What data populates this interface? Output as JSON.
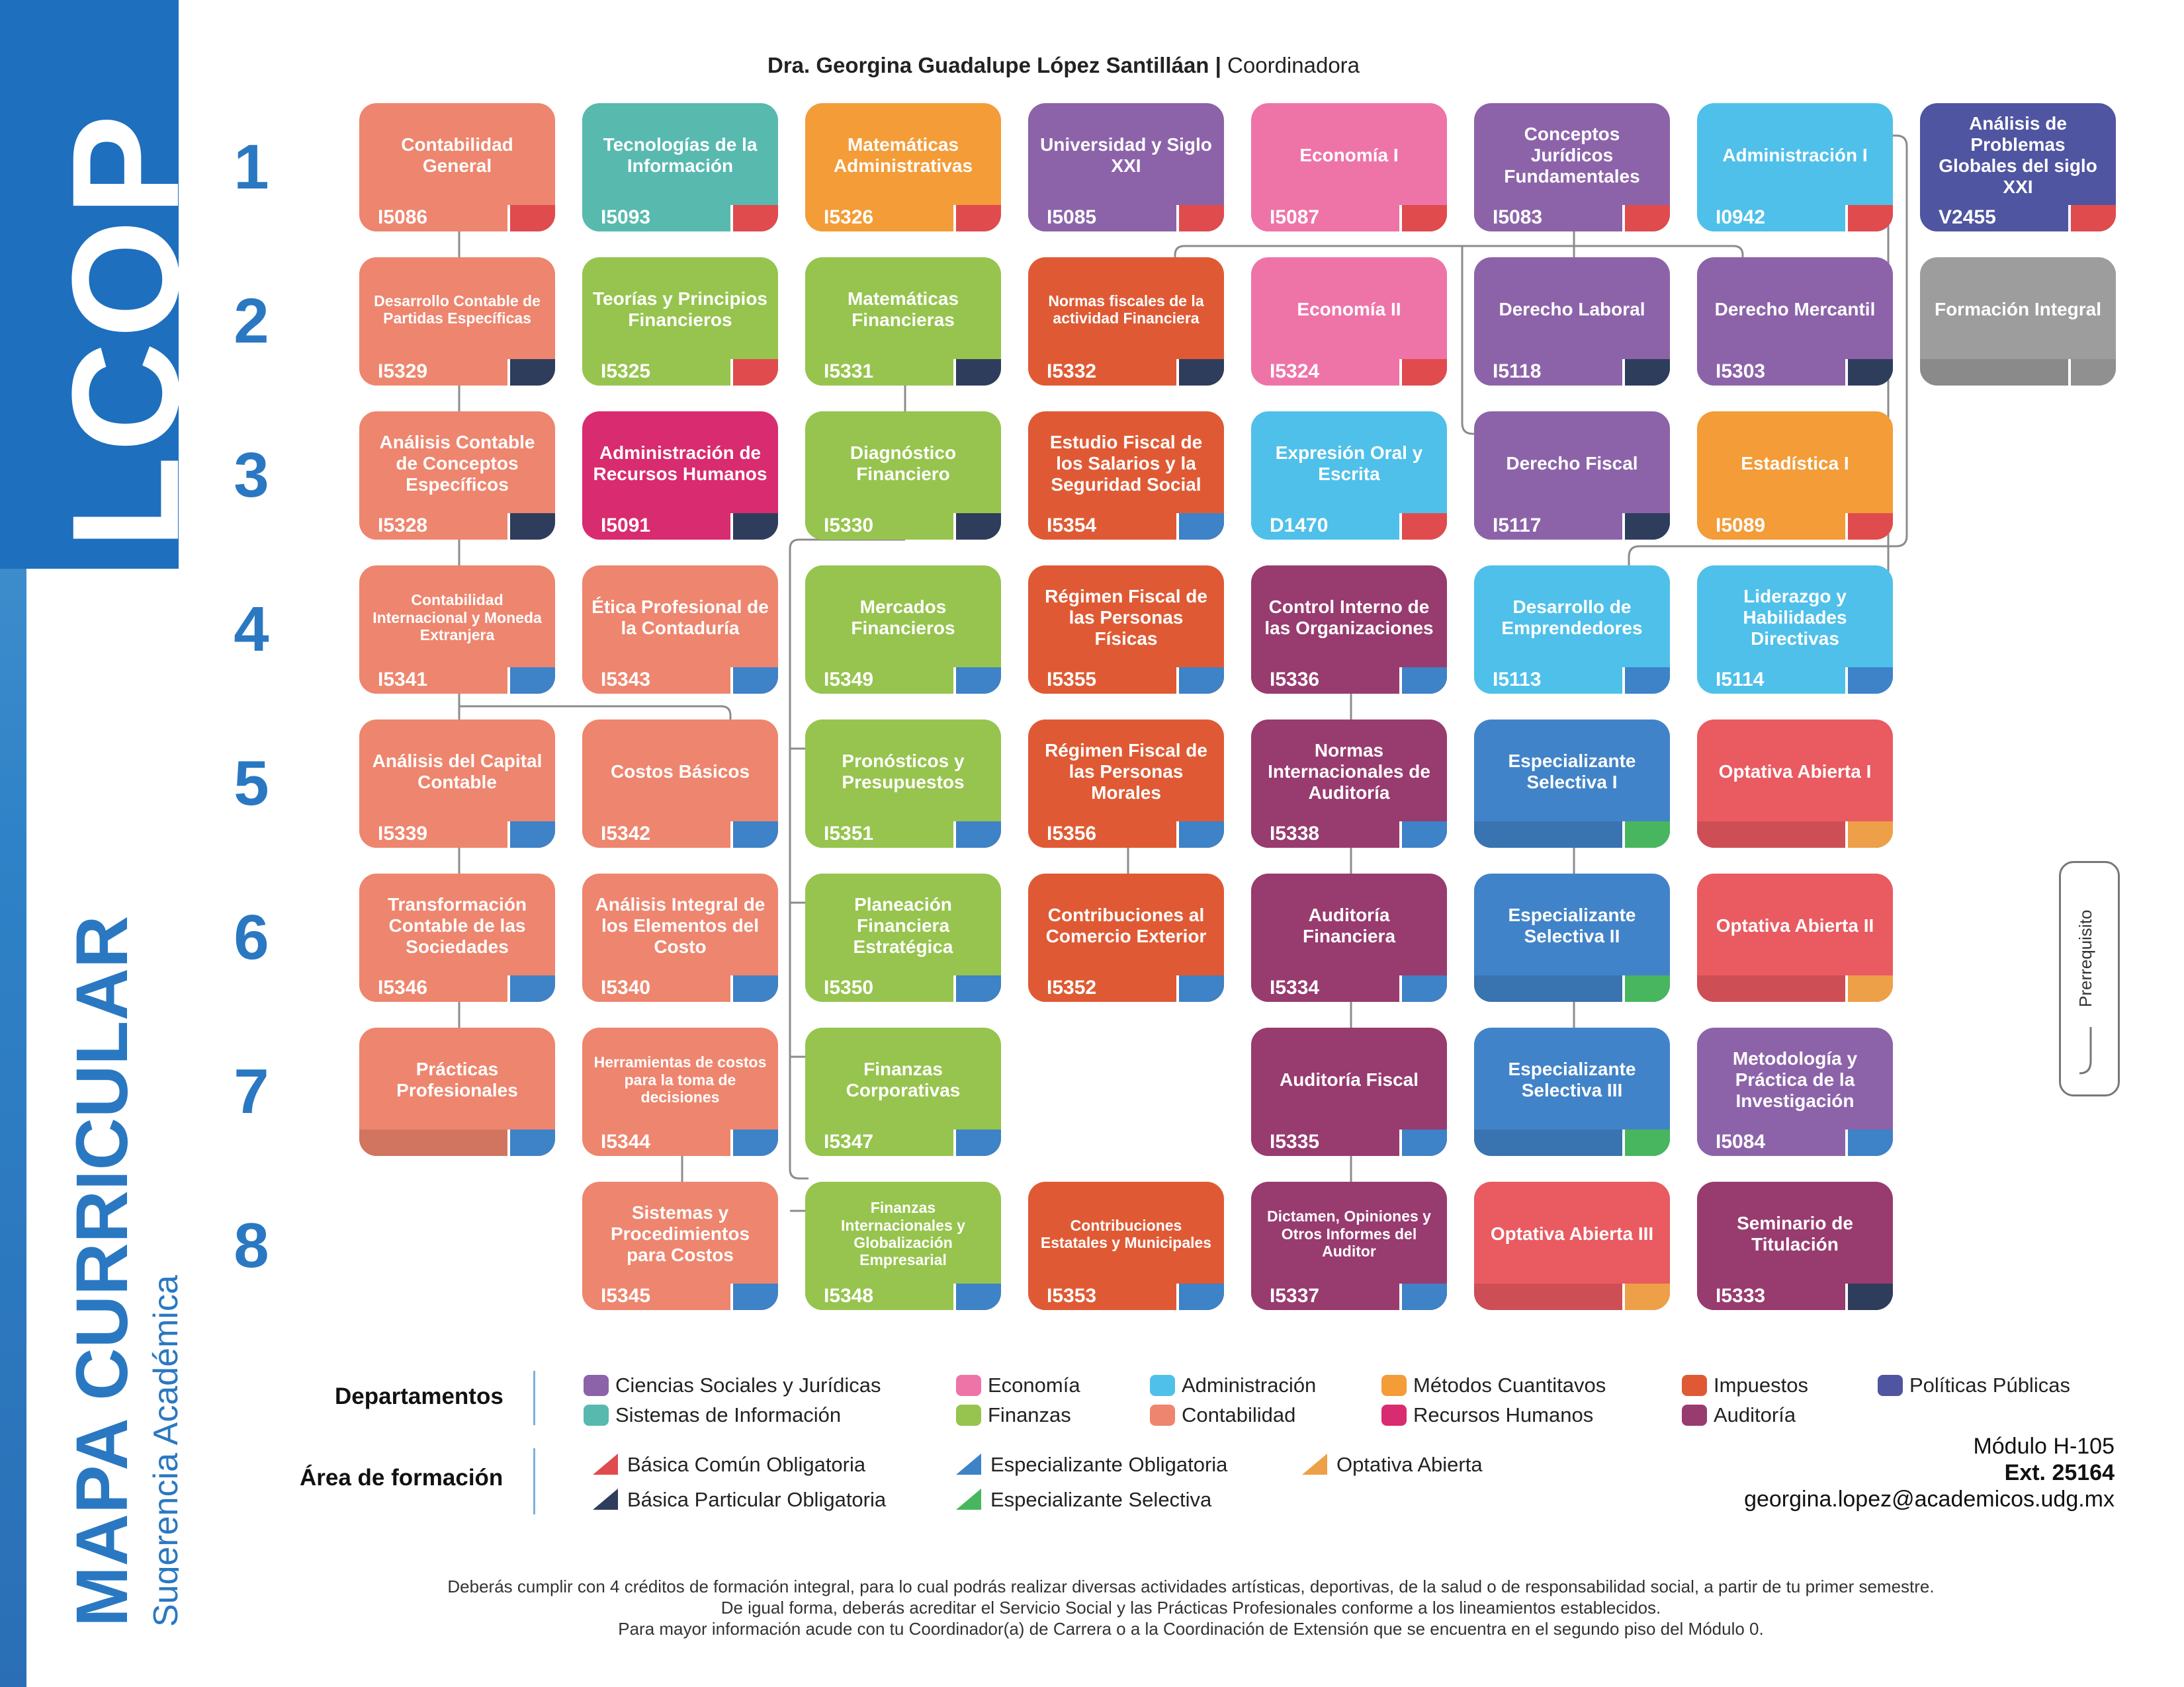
{
  "header": {
    "coordinator": "Dra. Georgina Guadalupe López Santilláan",
    "separator": " | ",
    "role": "Coordinadora"
  },
  "sidebar": {
    "program": "LCOP",
    "map_title": "MAPA CURRICULAR",
    "map_subtitle": "Sugerencia Académica"
  },
  "semesters": [
    "1",
    "2",
    "3",
    "4",
    "5",
    "6",
    "7",
    "8"
  ],
  "colors": {
    "contabilidad": "#ee856e",
    "sistemas": "#58b9af",
    "metodos": "#f39c38",
    "ciencias": "#8c63a9",
    "economia": "#ee74a8",
    "administracion": "#4fc0ea",
    "politicas": "#4f55a0",
    "finanzas": "#96c44e",
    "impuestos": "#df5a34",
    "recursos": "#d92b6f",
    "auditoria": "#983b6f",
    "especializante": "#4183c8",
    "optativa": "#e95a61",
    "gris": "#9d9d9d",
    "tag_basica_comun": "#e04b4e",
    "tag_basica_particular": "#2f3d5c",
    "tag_especializante_obl": "#3e82c7",
    "tag_especializante_sel": "#48b65e",
    "tag_optativa": "#eda048"
  },
  "courses": [
    {
      "name": "Contabilidad General",
      "code": "I5086",
      "dept": "contabilidad",
      "tag": "tag_basica_comun"
    },
    {
      "name": "Tecnologías de la Información",
      "code": "I5093",
      "dept": "sistemas",
      "tag": "tag_basica_comun"
    },
    {
      "name": "Matemáticas Administrativas",
      "code": "I5326",
      "dept": "metodos",
      "tag": "tag_basica_comun"
    },
    {
      "name": "Universidad y Siglo XXI",
      "code": "I5085",
      "dept": "ciencias",
      "tag": "tag_basica_comun"
    },
    {
      "name": "Economía I",
      "code": "I5087",
      "dept": "economia",
      "tag": "tag_basica_comun"
    },
    {
      "name": "Conceptos Jurídicos Fundamentales",
      "code": "I5083",
      "dept": "ciencias",
      "tag": "tag_basica_comun"
    },
    {
      "name": "Administración I",
      "code": "I0942",
      "dept": "administracion",
      "tag": "tag_basica_comun"
    },
    {
      "name": "Análisis de Problemas Globales del siglo XXI",
      "code": "V2455",
      "dept": "politicas",
      "tag": "tag_basica_comun"
    },
    {
      "name": "Desarrollo Contable de Partidas Específicas",
      "code": "I5329",
      "dept": "contabilidad",
      "tag": "tag_basica_particular",
      "small": true
    },
    {
      "name": "Teorías y Principios Financieros",
      "code": "I5325",
      "dept": "finanzas",
      "tag": "tag_basica_comun"
    },
    {
      "name": "Matemáticas Financieras",
      "code": "I5331",
      "dept": "finanzas",
      "tag": "tag_basica_particular"
    },
    {
      "name": "Normas fiscales de la actividad Financiera",
      "code": "I5332",
      "dept": "impuestos",
      "tag": "tag_basica_particular",
      "small": true
    },
    {
      "name": "Economía II",
      "code": "I5324",
      "dept": "economia",
      "tag": "tag_basica_comun"
    },
    {
      "name": "Derecho Laboral",
      "code": "I5118",
      "dept": "ciencias",
      "tag": "tag_basica_particular"
    },
    {
      "name": "Derecho Mercantil",
      "code": "I5303",
      "dept": "ciencias",
      "tag": "tag_basica_particular"
    },
    {
      "name": "Formación Integral",
      "code": "",
      "dept": "gris",
      "tag": "gris"
    },
    {
      "name": "Análisis Contable de Conceptos Específicos",
      "code": "I5328",
      "dept": "contabilidad",
      "tag": "tag_basica_particular"
    },
    {
      "name": "Administración de Recursos Humanos",
      "code": "I5091",
      "dept": "recursos",
      "tag": "tag_basica_particular"
    },
    {
      "name": "Diagnóstico Financiero",
      "code": "I5330",
      "dept": "finanzas",
      "tag": "tag_basica_particular"
    },
    {
      "name": "Estudio Fiscal de los Salarios y la Seguridad Social",
      "code": "I5354",
      "dept": "impuestos",
      "tag": "tag_especializante_obl"
    },
    {
      "name": "Expresión Oral y Escrita",
      "code": "D1470",
      "dept": "administracion",
      "tag": "tag_basica_comun"
    },
    {
      "name": "Derecho Fiscal",
      "code": "I5117",
      "dept": "ciencias",
      "tag": "tag_basica_particular"
    },
    {
      "name": "Estadística I",
      "code": "I5089",
      "dept": "metodos",
      "tag": "tag_basica_comun"
    },
    {
      "name": "Contabilidad Internacional y Moneda Extranjera",
      "code": "I5341",
      "dept": "contabilidad",
      "tag": "tag_especializante_obl",
      "small": true
    },
    {
      "name": "Ética Profesional de la Contaduría",
      "code": "I5343",
      "dept": "contabilidad",
      "tag": "tag_especializante_obl"
    },
    {
      "name": "Mercados Financieros",
      "code": "I5349",
      "dept": "finanzas",
      "tag": "tag_especializante_obl"
    },
    {
      "name": "Régimen Fiscal de las Personas Físicas",
      "code": "I5355",
      "dept": "impuestos",
      "tag": "tag_especializante_obl"
    },
    {
      "name": "Control Interno de las Organizaciones",
      "code": "I5336",
      "dept": "auditoria",
      "tag": "tag_especializante_obl"
    },
    {
      "name": "Desarrollo de Emprendedores",
      "code": "I5113",
      "dept": "administracion",
      "tag": "tag_especializante_obl"
    },
    {
      "name": "Liderazgo y Habilidades Directivas",
      "code": "I5114",
      "dept": "administracion",
      "tag": "tag_especializante_obl"
    },
    {
      "name": "Análisis del Capital Contable",
      "code": "I5339",
      "dept": "contabilidad",
      "tag": "tag_especializante_obl"
    },
    {
      "name": "Costos Básicos",
      "code": "I5342",
      "dept": "contabilidad",
      "tag": "tag_especializante_obl"
    },
    {
      "name": "Pronósticos y Presupuestos",
      "code": "I5351",
      "dept": "finanzas",
      "tag": "tag_especializante_obl"
    },
    {
      "name": "Régimen Fiscal de las Personas Morales",
      "code": "I5356",
      "dept": "impuestos",
      "tag": "tag_especializante_obl"
    },
    {
      "name": "Normas Internacionales de Auditoría",
      "code": "I5338",
      "dept": "auditoria",
      "tag": "tag_especializante_obl"
    },
    {
      "name": "Especializante Selectiva I",
      "code": "",
      "dept": "especializante",
      "tag": "tag_especializante_sel"
    },
    {
      "name": "Optativa Abierta I",
      "code": "",
      "dept": "optativa",
      "tag": "tag_optativa"
    },
    {
      "name": "Transformación Contable de las Sociedades",
      "code": "I5346",
      "dept": "contabilidad",
      "tag": "tag_especializante_obl"
    },
    {
      "name": "Análisis Integral de los Elementos del Costo",
      "code": "I5340",
      "dept": "contabilidad",
      "tag": "tag_especializante_obl"
    },
    {
      "name": "Planeación Financiera Estratégica",
      "code": "I5350",
      "dept": "finanzas",
      "tag": "tag_especializante_obl"
    },
    {
      "name": "Contribuciones al Comercio Exterior",
      "code": "I5352",
      "dept": "impuestos",
      "tag": "tag_especializante_obl"
    },
    {
      "name": "Auditoría Financiera",
      "code": "I5334",
      "dept": "auditoria",
      "tag": "tag_especializante_obl"
    },
    {
      "name": "Especializante Selectiva II",
      "code": "",
      "dept": "especializante",
      "tag": "tag_especializante_sel"
    },
    {
      "name": "Optativa Abierta II",
      "code": "",
      "dept": "optativa",
      "tag": "tag_optativa"
    },
    {
      "name": "Prácticas Profesionales",
      "code": "",
      "dept": "contabilidad",
      "tag": "tag_especializante_obl"
    },
    {
      "name": "Herramientas de costos para la toma de decisiones",
      "code": "I5344",
      "dept": "contabilidad",
      "tag": "tag_especializante_obl",
      "small": true
    },
    {
      "name": "Finanzas Corporativas",
      "code": "I5347",
      "dept": "finanzas",
      "tag": "tag_especializante_obl"
    },
    {
      "name": "Auditoría Fiscal",
      "code": "I5335",
      "dept": "auditoria",
      "tag": "tag_especializante_obl"
    },
    {
      "name": "Especializante Selectiva III",
      "code": "",
      "dept": "especializante",
      "tag": "tag_especializante_sel"
    },
    {
      "name": "Metodología y Práctica de la Investigación",
      "code": "I5084",
      "dept": "ciencias",
      "tag": "tag_especializante_obl"
    },
    {
      "name": "Sistemas y Procedimientos para Costos",
      "code": "I5345",
      "dept": "contabilidad",
      "tag": "tag_especializante_obl"
    },
    {
      "name": "Finanzas Internacionales y Globalización Empresarial",
      "code": "I5348",
      "dept": "finanzas",
      "tag": "tag_especializante_obl",
      "small": true
    },
    {
      "name": "Contribuciones Estatales y Municipales",
      "code": "I5353",
      "dept": "impuestos",
      "tag": "tag_especializante_obl",
      "small": true
    },
    {
      "name": "Dictamen, Opiniones y Otros Informes del Auditor",
      "code": "I5337",
      "dept": "auditoria",
      "tag": "tag_especializante_obl",
      "small": true
    },
    {
      "name": "Optativa Abierta III",
      "code": "",
      "dept": "optativa",
      "tag": "tag_optativa"
    },
    {
      "name": "Seminario de Titulación",
      "code": "I5333",
      "dept": "auditoria",
      "tag": "tag_basica_particular"
    }
  ],
  "legend": {
    "departments_title": "Departamentos",
    "departments": [
      {
        "label": "Ciencias Sociales y Jurídicas",
        "color": "ciencias"
      },
      {
        "label": "Sistemas de Información",
        "color": "sistemas"
      },
      {
        "label": "Economía",
        "color": "economia"
      },
      {
        "label": "Finanzas",
        "color": "finanzas"
      },
      {
        "label": "Administración",
        "color": "administracion"
      },
      {
        "label": "Contabilidad",
        "color": "contabilidad"
      },
      {
        "label": "Métodos Cuantitavos",
        "color": "metodos"
      },
      {
        "label": "Recursos Humanos",
        "color": "recursos"
      },
      {
        "label": "Impuestos",
        "color": "impuestos"
      },
      {
        "label": "Auditoría",
        "color": "auditoria"
      },
      {
        "label": "Políticas Públicas",
        "color": "politicas"
      }
    ],
    "areas_title": "Área de formación",
    "areas": [
      {
        "label": "Básica Común Obligatoria",
        "color": "tag_basica_comun"
      },
      {
        "label": "Básica Particular Obligatoria",
        "color": "tag_basica_particular"
      },
      {
        "label": "Especializante Obligatoria",
        "color": "tag_especializante_obl"
      },
      {
        "label": "Especializante Selectiva",
        "color": "tag_especializante_sel"
      },
      {
        "label": "Optativa Abierta",
        "color": "tag_optativa"
      }
    ],
    "prerequisite": "Prerrequisito"
  },
  "contact": {
    "module": "Módulo H-105",
    "ext": "Ext. 25164",
    "email": "georgina.lopez@academicos.udg.mx"
  },
  "footer": [
    "Deberás cumplir con 4 créditos de formación integral, para lo cual podrás realizar diversas actividades artísticas, deportivas, de la salud o de responsabilidad social, a partir de tu primer semestre.",
    "De igual forma, deberás acreditar el Servicio Social y las Prácticas Profesionales conforme a los lineamientos establecidos.",
    "Para mayor información acude con tu Coordinador(a) de Carrera o a la Coordinación de Extensión que se encuentra en el segundo piso del Módulo 0."
  ]
}
